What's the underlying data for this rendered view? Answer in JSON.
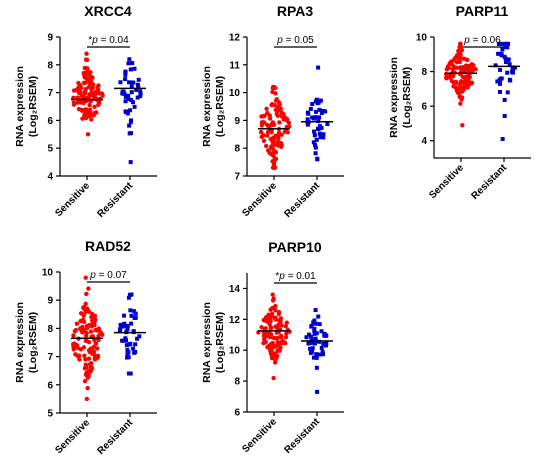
{
  "chart_data": [
    {
      "type": "scatter",
      "title": "XRCC4",
      "ylabel_line1": "RNA expression",
      "ylabel_line2": "(Log₂RSEM)",
      "ylim": [
        4,
        9
      ],
      "yticks": [
        4,
        5,
        6,
        7,
        8,
        9
      ],
      "categories": [
        "Sensitive",
        "Resistant"
      ],
      "p_label": "*p = 0.04",
      "series": [
        {
          "category": "Sensitive",
          "color": "#ff0000",
          "marker": "circle",
          "n": 110,
          "mean": 6.85,
          "median": 6.75,
          "sd": 0.55,
          "min": 5.5,
          "max": 8.4
        },
        {
          "category": "Resistant",
          "color": "#0000cc",
          "marker": "square",
          "n": 45,
          "mean": 7.1,
          "median": 7.15,
          "sd": 0.6,
          "min": 4.5,
          "max": 8.2
        }
      ]
    },
    {
      "type": "scatter",
      "title": "RPA3",
      "ylabel_line1": "RNA expression",
      "ylabel_line2": "(Log₂RSEM)",
      "ylim": [
        7,
        12
      ],
      "yticks": [
        7,
        8,
        9,
        10,
        11,
        12
      ],
      "categories": [
        "Sensitive",
        "Resistant"
      ],
      "p_label": "p = 0.05",
      "series": [
        {
          "category": "Sensitive",
          "color": "#ff0000",
          "marker": "circle",
          "n": 110,
          "mean": 8.75,
          "median": 8.7,
          "sd": 0.6,
          "min": 7.3,
          "max": 10.2
        },
        {
          "category": "Resistant",
          "color": "#0000cc",
          "marker": "square",
          "n": 45,
          "mean": 8.95,
          "median": 8.95,
          "sd": 0.55,
          "min": 7.6,
          "max": 10.9
        }
      ]
    },
    {
      "type": "scatter",
      "title": "PARP11",
      "ylabel_line1": "RNA expression",
      "ylabel_line2": "(Log₂RSEM)",
      "ylim": [
        3,
        10
      ],
      "yticks": [
        4,
        6,
        8,
        10
      ],
      "categories": [
        "Sensitive",
        "Resistant"
      ],
      "p_label": "p = 0.06",
      "series": [
        {
          "category": "Sensitive",
          "color": "#ff0000",
          "marker": "circle",
          "n": 110,
          "mean": 7.9,
          "median": 7.9,
          "sd": 0.7,
          "min": 4.9,
          "max": 9.6
        },
        {
          "category": "Resistant",
          "color": "#0000cc",
          "marker": "square",
          "n": 45,
          "mean": 8.3,
          "median": 8.3,
          "sd": 1.1,
          "min": 4.1,
          "max": 9.6
        }
      ]
    },
    {
      "type": "scatter",
      "title": "RAD52",
      "ylabel_line1": "RNA expression",
      "ylabel_line2": "(Log₂RSEM)",
      "ylim": [
        5,
        10
      ],
      "yticks": [
        5,
        6,
        7,
        8,
        9,
        10
      ],
      "categories": [
        "Sensitive",
        "Resistant"
      ],
      "p_label": "p = 0.07",
      "series": [
        {
          "category": "Sensitive",
          "color": "#ff0000",
          "marker": "circle",
          "n": 110,
          "mean": 7.6,
          "median": 7.65,
          "sd": 0.75,
          "min": 5.5,
          "max": 9.8
        },
        {
          "category": "Resistant",
          "color": "#0000cc",
          "marker": "square",
          "n": 45,
          "mean": 7.85,
          "median": 7.85,
          "sd": 0.6,
          "min": 6.4,
          "max": 9.2
        }
      ]
    },
    {
      "type": "scatter",
      "title": "PARP10",
      "ylabel_line1": "RNA expression",
      "ylabel_line2": "(Log₂RSEM)",
      "ylim": [
        6,
        15
      ],
      "yticks": [
        6,
        8,
        10,
        12,
        14
      ],
      "categories": [
        "Sensitive",
        "Resistant"
      ],
      "p_label": "*p = 0.01",
      "series": [
        {
          "category": "Sensitive",
          "color": "#ff0000",
          "marker": "circle",
          "n": 110,
          "mean": 11.2,
          "median": 11.25,
          "sd": 0.9,
          "min": 8.2,
          "max": 13.6
        },
        {
          "category": "Resistant",
          "color": "#0000cc",
          "marker": "square",
          "n": 45,
          "mean": 10.6,
          "median": 10.6,
          "sd": 0.9,
          "min": 7.3,
          "max": 12.6
        }
      ]
    }
  ]
}
